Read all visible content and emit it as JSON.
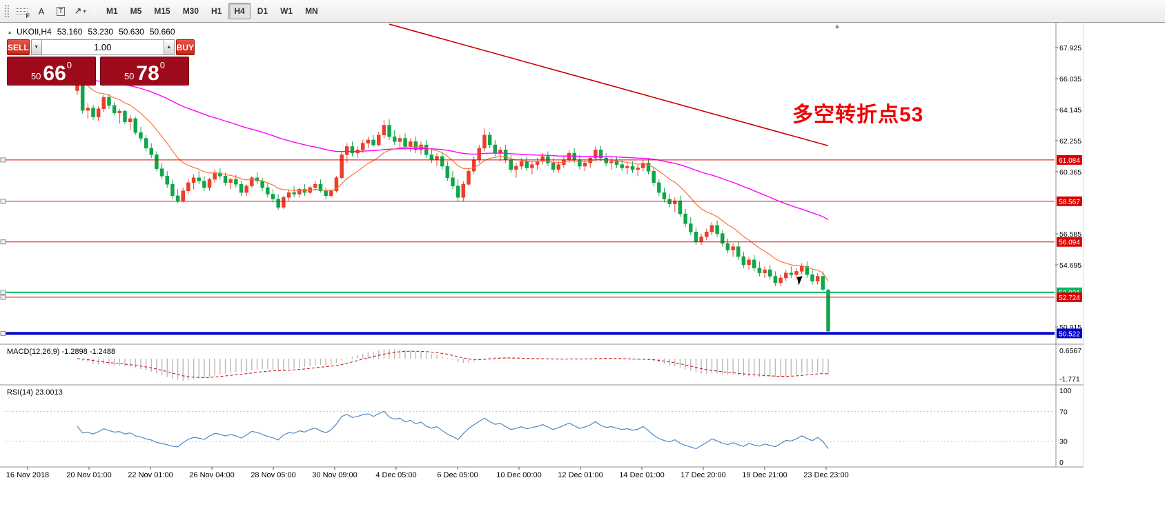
{
  "toolbar": {
    "tools": [
      {
        "name": "fibonacci-tool",
        "label": "F"
      },
      {
        "name": "text-tool",
        "label": "A"
      },
      {
        "name": "text-label-tool",
        "label": "T"
      },
      {
        "name": "arrows-tool",
        "label": "↗",
        "caret": "▾"
      }
    ],
    "timeframes": [
      "M1",
      "M5",
      "M15",
      "M30",
      "H1",
      "H4",
      "D1",
      "W1",
      "MN"
    ],
    "active_timeframe": "H4"
  },
  "chart_header": {
    "marker": "▴",
    "symbol_period": "UKOIl,H4",
    "open": "53.160",
    "high": "53.230",
    "low": "50.630",
    "close": "50.660",
    "shift_marker": "▲"
  },
  "trade_panel": {
    "sell_label": "SELL",
    "buy_label": "BUY",
    "volume": "1.00",
    "down_glyph": "▼",
    "up_glyph": "▲",
    "sell_price_small": "50",
    "sell_price_big": "66",
    "sell_price_sup": "0",
    "buy_price_small": "50",
    "buy_price_big": "78",
    "buy_price_sup": "0"
  },
  "annotation": {
    "text": "多空转折点53",
    "color": "#f00000"
  },
  "indicators": {
    "macd": {
      "label": "MACD(12,26,9) -1.2898 -1.2488",
      "scale_top": "0.6567",
      "scale_bottom": "-1.771",
      "params": [
        12,
        26,
        9
      ]
    },
    "rsi": {
      "label": "RSI(14) 23.0013",
      "period": 14,
      "levels": [
        100,
        70,
        30,
        0
      ]
    }
  },
  "chart_data": {
    "type": "candlestick",
    "symbol": "UKOIl",
    "timeframe": "H4",
    "up_color": "#e8402a",
    "down_color": "#10a54a",
    "y_axis_labels": [
      "67.925",
      "66.035",
      "64.145",
      "62.255",
      "60.365",
      "56.585",
      "54.695",
      "50.915"
    ],
    "x_labels": [
      "16 Nov 2018",
      "20 Nov 01:00",
      "22 Nov 01:00",
      "26 Nov 04:00",
      "28 Nov 05:00",
      "30 Nov 09:00",
      "4 Dec 05:00",
      "6 Dec 05:00",
      "10 Dec 00:00",
      "12 Dec 01:00",
      "14 Dec 01:00",
      "17 Dec 20:00",
      "19 Dec 21:00",
      "23 Dec 23:00"
    ],
    "hlines": [
      {
        "price": 61.084,
        "label": "61.084",
        "color": "#dd0000",
        "width": 1
      },
      {
        "price": 58.567,
        "label": "58.567",
        "color": "#dd0000",
        "width": 1
      },
      {
        "price": 56.094,
        "label": "56.094",
        "color": "#dd0000",
        "width": 1
      },
      {
        "price": 53.021,
        "label": "53.021",
        "color": "#00b861",
        "width": 2
      },
      {
        "price": 52.724,
        "label": "52.724",
        "color": "#dd0000",
        "width": 1
      },
      {
        "price": 50.522,
        "label": "50.522",
        "color": "#0000cc",
        "width": 4
      }
    ],
    "trendline": {
      "from_index": 59,
      "from_price": 69.35,
      "to_index": 142,
      "to_price": 61.95,
      "color": "#cc0000"
    },
    "ma_fast": {
      "period": 13,
      "color": "#ff7040"
    },
    "ma_slow": {
      "period": 72,
      "color": "#ff00ff"
    },
    "candles": [
      [
        65.3,
        66.3,
        65.05,
        66.1
      ],
      [
        66.1,
        66.75,
        63.9,
        64.1
      ],
      [
        64.1,
        64.55,
        63.6,
        64.25
      ],
      [
        64.25,
        64.45,
        63.5,
        63.7
      ],
      [
        63.7,
        64.35,
        63.45,
        64.2
      ],
      [
        64.2,
        65.05,
        64.0,
        64.9
      ],
      [
        64.9,
        65.1,
        64.2,
        64.4
      ],
      [
        64.4,
        64.6,
        63.8,
        63.95
      ],
      [
        63.95,
        64.2,
        63.3,
        64.05
      ],
      [
        64.05,
        64.15,
        63.25,
        63.4
      ],
      [
        63.4,
        63.8,
        62.9,
        63.6
      ],
      [
        63.6,
        63.7,
        62.6,
        62.75
      ],
      [
        62.75,
        63.1,
        62.2,
        62.4
      ],
      [
        62.4,
        62.6,
        61.6,
        61.8
      ],
      [
        61.8,
        62.1,
        61.2,
        61.4
      ],
      [
        61.4,
        61.6,
        60.4,
        60.55
      ],
      [
        60.55,
        60.9,
        59.9,
        60.1
      ],
      [
        60.1,
        60.4,
        59.4,
        59.6
      ],
      [
        59.6,
        59.9,
        58.7,
        58.9
      ],
      [
        58.9,
        59.3,
        58.45,
        58.6
      ],
      [
        58.6,
        59.4,
        58.5,
        59.2
      ],
      [
        59.2,
        59.9,
        59.0,
        59.7
      ],
      [
        59.7,
        60.2,
        59.3,
        60.0
      ],
      [
        60.0,
        60.4,
        59.6,
        59.8
      ],
      [
        59.8,
        60.1,
        59.2,
        59.4
      ],
      [
        59.4,
        60.0,
        59.2,
        59.9
      ],
      [
        59.9,
        60.5,
        59.7,
        60.3
      ],
      [
        60.3,
        60.6,
        59.9,
        60.1
      ],
      [
        60.1,
        60.3,
        59.5,
        59.7
      ],
      [
        59.7,
        60.0,
        59.3,
        59.9
      ],
      [
        59.9,
        60.2,
        59.4,
        59.6
      ],
      [
        59.6,
        59.8,
        58.9,
        59.1
      ],
      [
        59.1,
        59.6,
        58.9,
        59.5
      ],
      [
        59.5,
        60.1,
        59.4,
        60.0
      ],
      [
        60.0,
        60.35,
        59.6,
        59.8
      ],
      [
        59.8,
        60.0,
        59.2,
        59.4
      ],
      [
        59.4,
        59.7,
        58.8,
        59.0
      ],
      [
        59.0,
        59.3,
        58.5,
        58.7
      ],
      [
        58.7,
        59.0,
        58.05,
        58.2
      ],
      [
        58.2,
        58.9,
        58.1,
        58.8
      ],
      [
        58.8,
        59.3,
        58.6,
        59.1
      ],
      [
        59.1,
        59.5,
        58.8,
        59.0
      ],
      [
        59.0,
        59.4,
        58.8,
        59.3
      ],
      [
        59.3,
        59.6,
        58.9,
        59.1
      ],
      [
        59.1,
        59.5,
        59.0,
        59.4
      ],
      [
        59.4,
        59.8,
        59.2,
        59.6
      ],
      [
        59.6,
        59.9,
        59.1,
        59.2
      ],
      [
        59.2,
        59.4,
        58.7,
        58.9
      ],
      [
        58.9,
        59.3,
        58.8,
        59.2
      ],
      [
        59.2,
        60.1,
        59.1,
        60.0
      ],
      [
        60.0,
        61.6,
        59.9,
        61.4
      ],
      [
        61.4,
        62.1,
        60.9,
        61.9
      ],
      [
        61.9,
        62.2,
        61.3,
        61.5
      ],
      [
        61.5,
        61.9,
        61.2,
        61.7
      ],
      [
        61.7,
        62.3,
        61.5,
        62.1
      ],
      [
        62.1,
        62.5,
        61.8,
        62.3
      ],
      [
        62.3,
        62.6,
        61.9,
        62.0
      ],
      [
        62.0,
        62.8,
        61.9,
        62.6
      ],
      [
        62.6,
        63.5,
        62.4,
        63.2
      ],
      [
        63.2,
        63.55,
        62.3,
        62.5
      ],
      [
        62.5,
        62.9,
        62.0,
        62.2
      ],
      [
        62.2,
        62.6,
        61.8,
        62.4
      ],
      [
        62.4,
        62.7,
        61.7,
        61.9
      ],
      [
        61.9,
        62.4,
        61.6,
        62.2
      ],
      [
        62.2,
        62.5,
        61.5,
        61.7
      ],
      [
        61.7,
        62.2,
        61.4,
        62.0
      ],
      [
        62.0,
        62.3,
        61.2,
        61.4
      ],
      [
        61.4,
        61.8,
        60.9,
        61.1
      ],
      [
        61.1,
        61.5,
        60.7,
        61.3
      ],
      [
        61.3,
        61.6,
        60.5,
        60.7
      ],
      [
        60.7,
        61.0,
        59.8,
        60.0
      ],
      [
        60.0,
        60.4,
        59.3,
        59.5
      ],
      [
        59.5,
        59.9,
        58.6,
        58.8
      ],
      [
        58.8,
        59.8,
        58.55,
        59.6
      ],
      [
        59.6,
        60.6,
        59.5,
        60.4
      ],
      [
        60.4,
        61.3,
        60.2,
        61.1
      ],
      [
        61.1,
        62.0,
        60.9,
        61.8
      ],
      [
        61.8,
        63.0,
        61.6,
        62.6
      ],
      [
        62.6,
        62.8,
        61.8,
        62.0
      ],
      [
        62.0,
        62.3,
        61.3,
        61.5
      ],
      [
        61.5,
        61.9,
        61.0,
        61.7
      ],
      [
        61.7,
        62.0,
        60.9,
        61.1
      ],
      [
        61.1,
        61.4,
        60.3,
        60.5
      ],
      [
        60.5,
        60.9,
        60.0,
        60.7
      ],
      [
        60.7,
        61.2,
        60.5,
        61.0
      ],
      [
        61.0,
        61.3,
        60.4,
        60.6
      ],
      [
        60.6,
        61.0,
        60.2,
        60.8
      ],
      [
        60.8,
        61.2,
        60.5,
        61.0
      ],
      [
        61.0,
        61.5,
        60.8,
        61.3
      ],
      [
        61.3,
        61.6,
        60.7,
        60.9
      ],
      [
        60.9,
        61.2,
        60.3,
        60.5
      ],
      [
        60.5,
        61.0,
        60.3,
        60.8
      ],
      [
        60.8,
        61.3,
        60.6,
        61.1
      ],
      [
        61.1,
        61.7,
        60.9,
        61.5
      ],
      [
        61.5,
        61.8,
        60.9,
        61.1
      ],
      [
        61.1,
        61.4,
        60.5,
        60.7
      ],
      [
        60.7,
        61.1,
        60.4,
        60.9
      ],
      [
        60.9,
        61.3,
        60.6,
        61.2
      ],
      [
        61.2,
        61.9,
        61.0,
        61.7
      ],
      [
        61.7,
        61.95,
        61.0,
        61.2
      ],
      [
        61.2,
        61.5,
        60.7,
        60.9
      ],
      [
        60.9,
        61.2,
        60.5,
        61.0
      ],
      [
        61.0,
        61.3,
        60.6,
        60.8
      ],
      [
        60.8,
        61.1,
        60.4,
        60.6
      ],
      [
        60.6,
        60.9,
        60.2,
        60.7
      ],
      [
        60.7,
        61.0,
        60.3,
        60.5
      ],
      [
        60.5,
        60.8,
        60.1,
        60.6
      ],
      [
        60.6,
        61.1,
        60.4,
        60.9
      ],
      [
        60.9,
        61.15,
        60.2,
        60.4
      ],
      [
        60.4,
        60.6,
        59.5,
        59.7
      ],
      [
        59.7,
        59.9,
        58.9,
        59.1
      ],
      [
        59.1,
        59.4,
        58.5,
        58.7
      ],
      [
        58.7,
        59.0,
        58.2,
        58.4
      ],
      [
        58.4,
        58.8,
        57.9,
        58.6
      ],
      [
        58.6,
        58.9,
        57.6,
        57.8
      ],
      [
        57.8,
        58.1,
        57.0,
        57.2
      ],
      [
        57.2,
        57.6,
        56.5,
        56.7
      ],
      [
        56.7,
        57.0,
        55.9,
        56.1
      ],
      [
        56.1,
        56.6,
        55.9,
        56.4
      ],
      [
        56.4,
        56.9,
        56.2,
        56.7
      ],
      [
        56.7,
        57.3,
        56.5,
        57.1
      ],
      [
        57.1,
        57.4,
        56.4,
        56.6
      ],
      [
        56.6,
        56.8,
        55.8,
        56.0
      ],
      [
        56.0,
        56.3,
        55.4,
        55.6
      ],
      [
        55.6,
        56.0,
        55.2,
        55.8
      ],
      [
        55.8,
        56.1,
        55.0,
        55.2
      ],
      [
        55.2,
        55.5,
        54.5,
        54.7
      ],
      [
        54.7,
        55.2,
        54.4,
        55.0
      ],
      [
        55.0,
        55.3,
        54.3,
        54.5
      ],
      [
        54.5,
        54.9,
        54.0,
        54.2
      ],
      [
        54.2,
        54.6,
        53.9,
        54.4
      ],
      [
        54.4,
        54.7,
        53.8,
        54.0
      ],
      [
        54.0,
        54.3,
        53.4,
        53.6
      ],
      [
        53.6,
        54.1,
        53.4,
        53.9
      ],
      [
        53.9,
        54.4,
        53.7,
        54.2
      ],
      [
        54.2,
        54.6,
        53.9,
        54.1
      ],
      [
        54.1,
        54.5,
        53.8,
        54.3
      ],
      [
        54.3,
        54.8,
        54.1,
        54.6
      ],
      [
        54.6,
        54.9,
        53.9,
        54.1
      ],
      [
        54.1,
        54.4,
        53.5,
        53.7
      ],
      [
        53.7,
        54.2,
        53.5,
        54.0
      ],
      [
        54.0,
        54.3,
        53.1,
        53.2
      ],
      [
        53.16,
        53.23,
        50.63,
        50.66
      ]
    ]
  }
}
